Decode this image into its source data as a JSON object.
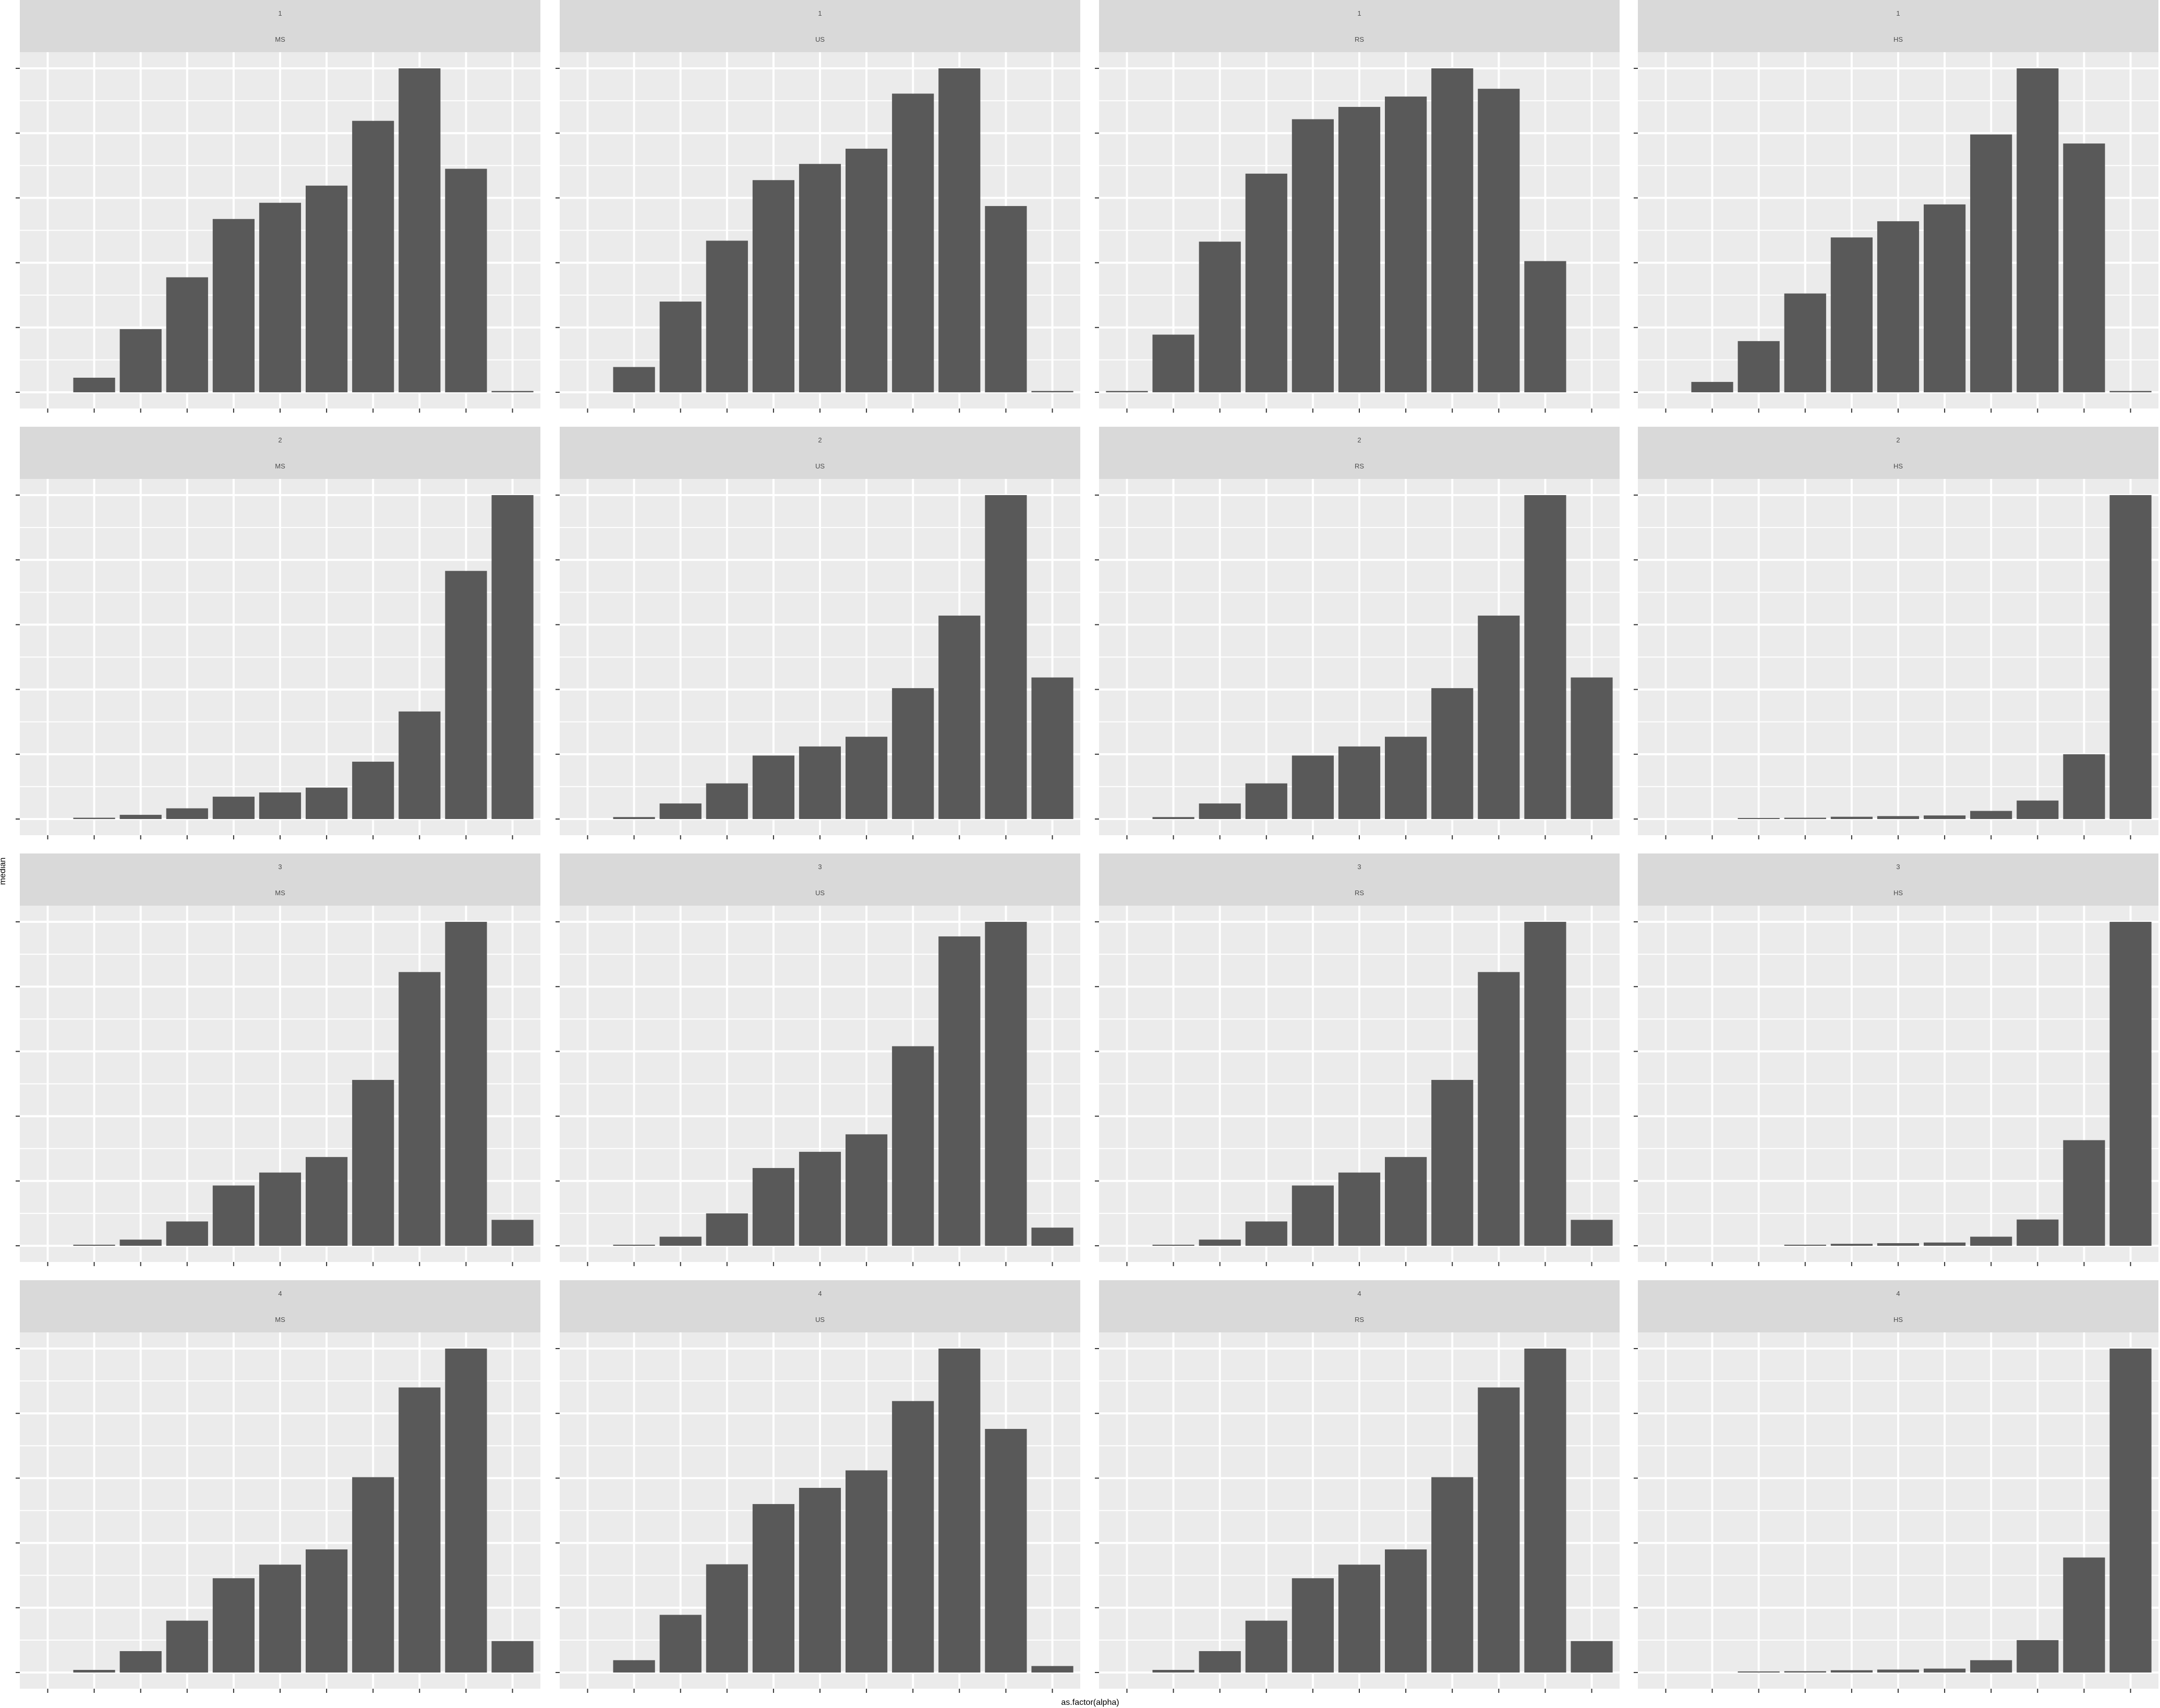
{
  "chart_data": {
    "type": "bar",
    "layout": "facet_grid",
    "xlabel": "as.factor(alpha)",
    "ylabel": "median",
    "x_tick_labels_visible": false,
    "y_tick_labels_visible": false,
    "grid": true,
    "legend": "none",
    "colors": {
      "bar": "#595959",
      "panel_background": "#ebebeb",
      "strip_background": "#d9d9d9",
      "grid_line": "#ffffff",
      "strip_text": "#4d4d4d"
    },
    "x_slots": 11,
    "rows": [
      "1",
      "2",
      "3",
      "4"
    ],
    "cols": [
      "MS",
      "US",
      "RS",
      "HS"
    ],
    "panels": [
      {
        "row": "1",
        "col": "MS",
        "ylim": [
          0,
          1.0
        ],
        "values": [
          null,
          0.045,
          0.195,
          0.355,
          0.535,
          0.585,
          0.638,
          0.838,
          1.0,
          0.69,
          0.004
        ]
      },
      {
        "row": "1",
        "col": "US",
        "ylim": [
          0,
          1.0
        ],
        "values": [
          null,
          0.078,
          0.28,
          0.468,
          0.655,
          0.705,
          0.752,
          0.922,
          1.0,
          0.575,
          0.004
        ]
      },
      {
        "row": "1",
        "col": "RS",
        "ylim": [
          0,
          1.0
        ],
        "values": [
          0.004,
          0.178,
          0.465,
          0.675,
          0.843,
          0.881,
          0.913,
          1.0,
          0.937,
          0.405,
          null
        ]
      },
      {
        "row": "1",
        "col": "HS",
        "ylim": [
          0,
          1.0
        ],
        "values": [
          null,
          0.032,
          0.158,
          0.305,
          0.478,
          0.528,
          0.58,
          0.796,
          1.0,
          0.768,
          0.004
        ]
      },
      {
        "row": "2",
        "col": "MS",
        "ylim": [
          0,
          1.0
        ],
        "values": [
          null,
          0.004,
          0.013,
          0.033,
          0.069,
          0.082,
          0.097,
          0.177,
          0.332,
          0.766,
          1.0
        ]
      },
      {
        "row": "2",
        "col": "US",
        "ylim": [
          0,
          1.0
        ],
        "values": [
          null,
          0.006,
          0.048,
          0.11,
          0.196,
          0.224,
          0.254,
          0.404,
          0.628,
          1.0,
          0.437
        ]
      },
      {
        "row": "2",
        "col": "RS",
        "ylim": [
          0,
          1.0
        ],
        "values": [
          null,
          0.006,
          0.048,
          0.11,
          0.196,
          0.224,
          0.254,
          0.404,
          0.628,
          1.0,
          0.437
        ]
      },
      {
        "row": "2",
        "col": "HS",
        "ylim": [
          0,
          1.0
        ],
        "values": [
          null,
          null,
          0.002,
          0.004,
          0.007,
          0.009,
          0.011,
          0.025,
          0.057,
          0.2,
          1.0
        ]
      },
      {
        "row": "3",
        "col": "MS",
        "ylim": [
          0,
          1.0
        ],
        "values": [
          null,
          0.002,
          0.019,
          0.075,
          0.186,
          0.226,
          0.274,
          0.512,
          0.845,
          1.0,
          0.08
        ]
      },
      {
        "row": "3",
        "col": "US",
        "ylim": [
          0,
          1.0
        ],
        "values": [
          null,
          0.003,
          0.028,
          0.1,
          0.24,
          0.29,
          0.344,
          0.616,
          0.955,
          1.0,
          0.056
        ]
      },
      {
        "row": "3",
        "col": "RS",
        "ylim": [
          0,
          1.0
        ],
        "values": [
          null,
          0.002,
          0.019,
          0.075,
          0.186,
          0.226,
          0.274,
          0.512,
          0.845,
          1.0,
          0.08
        ]
      },
      {
        "row": "3",
        "col": "HS",
        "ylim": [
          0,
          1.0
        ],
        "values": [
          null,
          null,
          null,
          0.003,
          0.006,
          0.008,
          0.01,
          0.028,
          0.081,
          0.326,
          1.0
        ]
      },
      {
        "row": "4",
        "col": "MS",
        "ylim": [
          0,
          1.0
        ],
        "values": [
          null,
          0.008,
          0.066,
          0.16,
          0.291,
          0.333,
          0.38,
          0.603,
          0.88,
          1.0,
          0.097
        ]
      },
      {
        "row": "4",
        "col": "US",
        "ylim": [
          0,
          1.0
        ],
        "values": [
          null,
          0.038,
          0.178,
          0.334,
          0.52,
          0.57,
          0.624,
          0.838,
          1.0,
          0.752,
          0.02
        ]
      },
      {
        "row": "4",
        "col": "RS",
        "ylim": [
          0,
          1.0
        ],
        "values": [
          null,
          0.008,
          0.066,
          0.16,
          0.291,
          0.333,
          0.38,
          0.603,
          0.88,
          1.0,
          0.097
        ]
      },
      {
        "row": "4",
        "col": "HS",
        "ylim": [
          0,
          1.0
        ],
        "values": [
          null,
          null,
          0.002,
          0.004,
          0.007,
          0.009,
          0.012,
          0.038,
          0.1,
          0.355,
          1.0
        ]
      }
    ]
  }
}
